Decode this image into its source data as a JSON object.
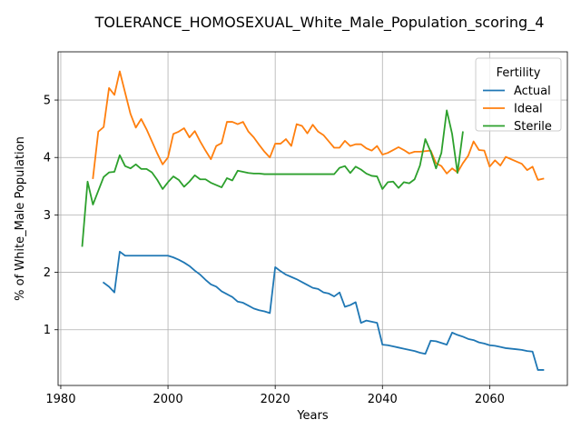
{
  "chart_data": {
    "type": "line",
    "title": "TOLERANCE_HOMOSEXUAL_White_Male_Population_scoring_4",
    "xlabel": "Years",
    "ylabel": "% of White_Male Population",
    "xlim": [
      1979.5,
      2074.5
    ],
    "ylim": [
      0.03,
      5.84
    ],
    "xticks": [
      1980,
      2000,
      2020,
      2040,
      2060
    ],
    "xtick_labels": [
      "1980",
      "2000",
      "2020",
      "2040",
      "2060"
    ],
    "yticks": [
      1,
      2,
      3,
      4,
      5
    ],
    "ytick_labels": [
      "1",
      "2",
      "3",
      "4",
      "5"
    ],
    "grid": true,
    "legend": {
      "title": "Fertility",
      "position": "top-right"
    },
    "series": [
      {
        "name": "Actual",
        "color": "#1f77b4",
        "x": [
          1988,
          1989,
          1990,
          1991,
          1992,
          1993,
          1994,
          1995,
          1996,
          1997,
          1998,
          1999,
          2000,
          2001,
          2002,
          2003,
          2004,
          2005,
          2006,
          2007,
          2008,
          2009,
          2010,
          2011,
          2012,
          2013,
          2014,
          2015,
          2016,
          2017,
          2018,
          2019,
          2020,
          2021,
          2022,
          2023,
          2024,
          2025,
          2026,
          2027,
          2028,
          2029,
          2030,
          2031,
          2032,
          2033,
          2034,
          2035,
          2036,
          2037,
          2038,
          2039,
          2040,
          2041,
          2042,
          2043,
          2044,
          2045,
          2046,
          2047,
          2048,
          2049,
          2050,
          2051,
          2052,
          2053,
          2054,
          2055,
          2056,
          2057,
          2058,
          2059,
          2060,
          2061,
          2062,
          2063,
          2064,
          2065,
          2066,
          2067,
          2068,
          2069,
          2070
        ],
        "y": [
          1.82,
          1.75,
          1.65,
          2.36,
          2.29,
          2.29,
          2.29,
          2.29,
          2.29,
          2.29,
          2.29,
          2.29,
          2.29,
          2.26,
          2.22,
          2.17,
          2.11,
          2.03,
          1.96,
          1.87,
          1.79,
          1.75,
          1.67,
          1.62,
          1.57,
          1.49,
          1.47,
          1.42,
          1.37,
          1.34,
          1.32,
          1.29,
          2.09,
          2.02,
          1.96,
          1.92,
          1.88,
          1.83,
          1.78,
          1.73,
          1.71,
          1.65,
          1.63,
          1.58,
          1.65,
          1.4,
          1.43,
          1.48,
          1.12,
          1.16,
          1.14,
          1.12,
          0.74,
          0.73,
          0.71,
          0.69,
          0.67,
          0.65,
          0.63,
          0.6,
          0.58,
          0.81,
          0.8,
          0.77,
          0.74,
          0.95,
          0.91,
          0.88,
          0.84,
          0.82,
          0.78,
          0.76,
          0.73,
          0.72,
          0.7,
          0.68,
          0.67,
          0.66,
          0.65,
          0.63,
          0.62,
          0.3,
          0.3
        ]
      },
      {
        "name": "Ideal",
        "color": "#ff7f0e",
        "x": [
          1986,
          1987,
          1988,
          1989,
          1990,
          1991,
          1992,
          1993,
          1994,
          1995,
          1996,
          1997,
          1998,
          1999,
          2000,
          2001,
          2002,
          2003,
          2004,
          2005,
          2006,
          2007,
          2008,
          2009,
          2010,
          2011,
          2012,
          2013,
          2014,
          2015,
          2016,
          2017,
          2018,
          2019,
          2020,
          2021,
          2022,
          2023,
          2024,
          2025,
          2026,
          2027,
          2028,
          2029,
          2030,
          2031,
          2032,
          2033,
          2034,
          2035,
          2036,
          2037,
          2038,
          2039,
          2040,
          2041,
          2042,
          2043,
          2044,
          2045,
          2046,
          2047,
          2048,
          2049,
          2050,
          2051,
          2052,
          2053,
          2054,
          2055,
          2056,
          2057,
          2058,
          2059,
          2060,
          2061,
          2062,
          2063,
          2064,
          2065,
          2066,
          2067,
          2068,
          2069,
          2070
        ],
        "y": [
          3.64,
          4.45,
          4.53,
          5.21,
          5.09,
          5.5,
          5.13,
          4.76,
          4.52,
          4.67,
          4.49,
          4.28,
          4.07,
          3.88,
          4.0,
          4.41,
          4.45,
          4.51,
          4.35,
          4.46,
          4.28,
          4.12,
          3.97,
          4.2,
          4.25,
          4.62,
          4.62,
          4.58,
          4.62,
          4.45,
          4.35,
          4.22,
          4.1,
          4.0,
          4.24,
          4.24,
          4.32,
          4.2,
          4.58,
          4.55,
          4.42,
          4.57,
          4.45,
          4.39,
          4.28,
          4.17,
          4.17,
          4.29,
          4.2,
          4.23,
          4.23,
          4.16,
          4.12,
          4.2,
          4.05,
          4.08,
          4.13,
          4.18,
          4.13,
          4.07,
          4.1,
          4.1,
          4.11,
          4.12,
          3.9,
          3.85,
          3.72,
          3.81,
          3.74,
          3.9,
          4.03,
          4.28,
          4.13,
          4.12,
          3.84,
          3.95,
          3.86,
          4.01,
          3.97,
          3.93,
          3.89,
          3.78,
          3.84,
          3.61,
          3.63
        ]
      },
      {
        "name": "Sterile",
        "color": "#2ca02c",
        "x": [
          1984,
          1985,
          1986,
          1987,
          1988,
          1989,
          1990,
          1991,
          1992,
          1993,
          1994,
          1995,
          1996,
          1997,
          1998,
          1999,
          2000,
          2001,
          2002,
          2003,
          2004,
          2005,
          2006,
          2007,
          2008,
          2009,
          2010,
          2011,
          2012,
          2013,
          2014,
          2015,
          2016,
          2017,
          2018,
          2019,
          2020,
          2021,
          2022,
          2023,
          2024,
          2025,
          2026,
          2027,
          2028,
          2029,
          2030,
          2031,
          2032,
          2033,
          2034,
          2035,
          2036,
          2037,
          2038,
          2039,
          2040,
          2041,
          2042,
          2043,
          2044,
          2045,
          2046,
          2047,
          2048,
          2049,
          2050,
          2051,
          2052,
          2053,
          2054,
          2055
        ],
        "y": [
          2.46,
          3.58,
          3.18,
          3.42,
          3.66,
          3.74,
          3.75,
          4.04,
          3.85,
          3.81,
          3.88,
          3.8,
          3.8,
          3.74,
          3.61,
          3.45,
          3.57,
          3.67,
          3.61,
          3.49,
          3.58,
          3.69,
          3.62,
          3.62,
          3.56,
          3.52,
          3.48,
          3.64,
          3.6,
          3.77,
          3.75,
          3.73,
          3.72,
          3.72,
          3.71,
          3.71,
          3.71,
          3.71,
          3.71,
          3.71,
          3.71,
          3.71,
          3.71,
          3.71,
          3.71,
          3.71,
          3.71,
          3.71,
          3.82,
          3.85,
          3.73,
          3.84,
          3.79,
          3.72,
          3.68,
          3.67,
          3.45,
          3.57,
          3.58,
          3.47,
          3.57,
          3.55,
          3.62,
          3.86,
          4.32,
          4.1,
          3.81,
          4.08,
          4.82,
          4.41,
          3.73,
          4.44
        ]
      }
    ]
  }
}
